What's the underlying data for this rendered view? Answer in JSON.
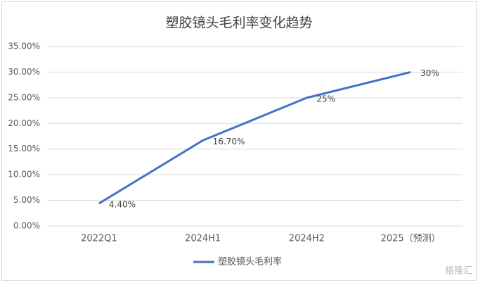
{
  "chart_data": {
    "type": "line",
    "title": "塑胶镜头毛利率变化趋势",
    "categories": [
      "2022Q1",
      "2024H1",
      "2024H2",
      "2025（预测）"
    ],
    "series": [
      {
        "name": "塑胶镜头毛利率",
        "color": "#4472c4",
        "values": [
          4.4,
          16.7,
          25,
          30
        ],
        "value_labels": [
          "4.40%",
          "16.70%",
          "25%",
          "30%"
        ]
      }
    ],
    "ylim": [
      0,
      35
    ],
    "yticks": [
      {
        "value": 0,
        "label": "0.00%"
      },
      {
        "value": 5,
        "label": "5.00%"
      },
      {
        "value": 10,
        "label": "10.00%"
      },
      {
        "value": 15,
        "label": "15.00%"
      },
      {
        "value": 20,
        "label": "20.00%"
      },
      {
        "value": 25,
        "label": "25.00%"
      },
      {
        "value": 30,
        "label": "30.00%"
      },
      {
        "value": 35,
        "label": "35.00%"
      }
    ],
    "grid": true,
    "legend": "bottom",
    "watermark": "格隆汇"
  }
}
